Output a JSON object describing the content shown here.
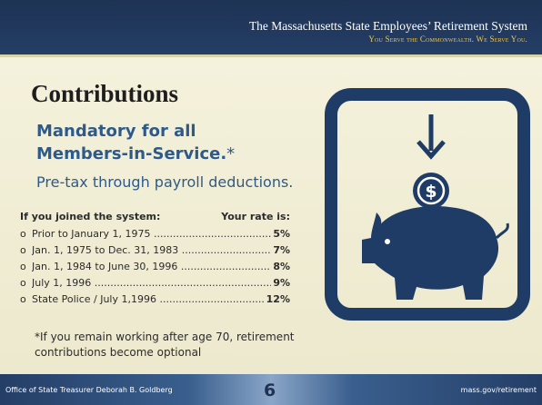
{
  "header": {
    "organization": "The Massachusetts State Employees’ Retirement System",
    "tagline": "You Serve the Commonwealth. We Serve You."
  },
  "title": "Contributions",
  "subtitle": {
    "lines": [
      "Mandatory for all",
      "Members-in-Service."
    ],
    "marker": "*"
  },
  "detail": "Pre-tax through payroll deductions.",
  "table": {
    "header": [
      "If you joined the system:",
      "Your rate is:"
    ],
    "rows": [
      [
        "Prior to January 1, 1975",
        "5%"
      ],
      [
        "Jan. 1, 1975 to Dec. 31, 1983",
        "7%"
      ],
      [
        "Jan. 1, 1984 to June 30, 1996",
        "8%"
      ],
      [
        "July 1, 1996",
        "9%"
      ],
      [
        "State Police / July 1,1996",
        "12%"
      ]
    ]
  },
  "footnote": "*If you remain working after age 70, retirement contributions become optional",
  "footer": {
    "left": "Office of State Treasurer Deborah B. Goldberg",
    "page": "6",
    "right": "mass.gov/retirement"
  }
}
